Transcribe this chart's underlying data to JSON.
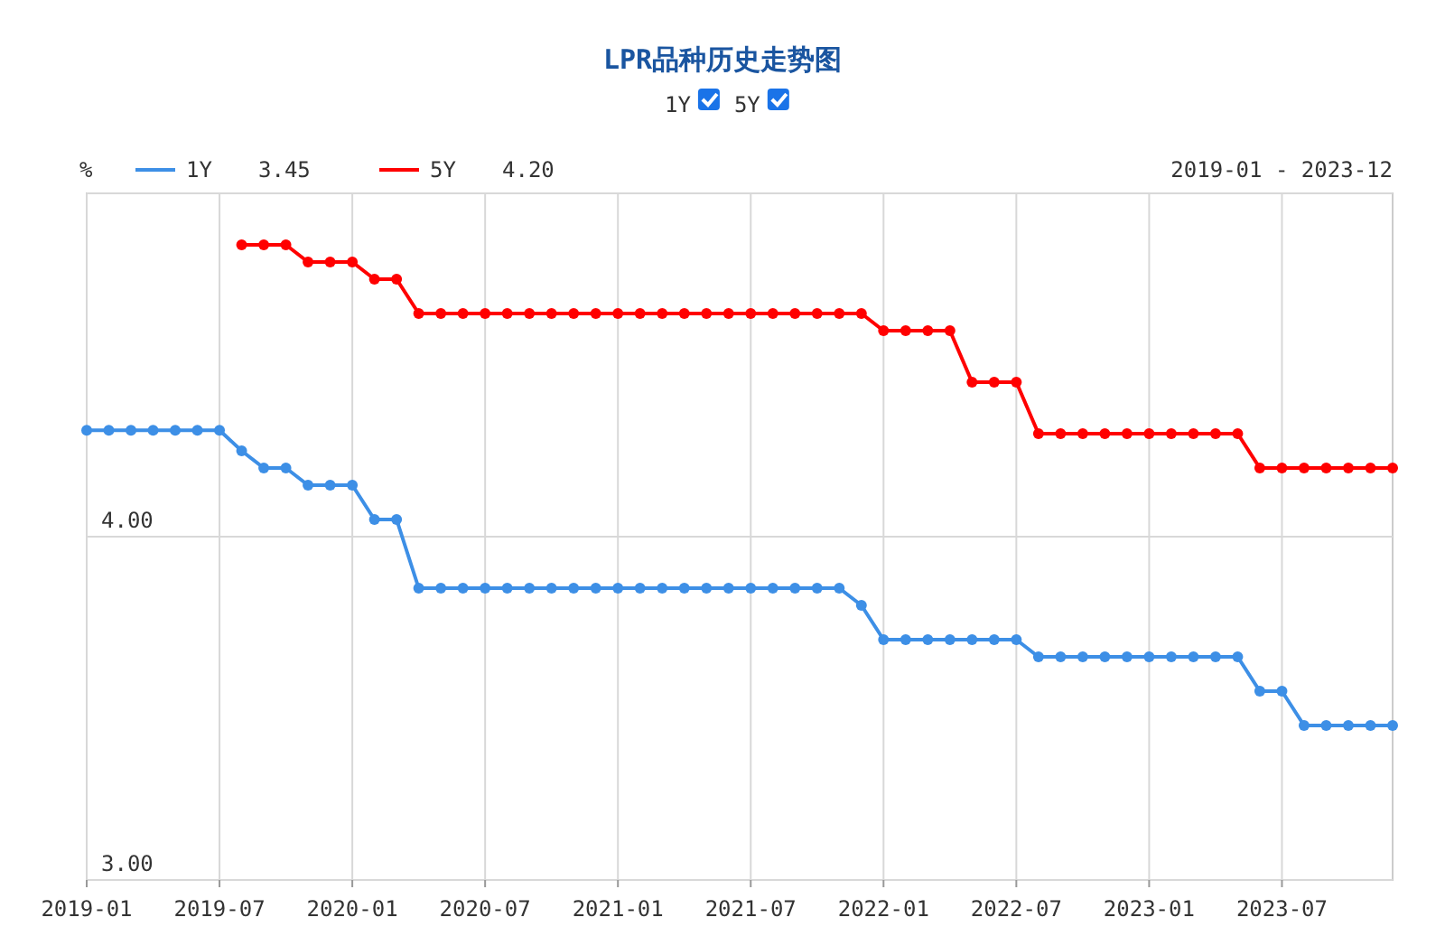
{
  "chart_data": {
    "type": "line",
    "title": "LPR品种历史走势图",
    "ylabel": "%",
    "x": [
      "2019-01",
      "2019-02",
      "2019-03",
      "2019-04",
      "2019-05",
      "2019-06",
      "2019-07",
      "2019-08",
      "2019-09",
      "2019-10",
      "2019-11",
      "2019-12",
      "2020-01",
      "2020-02",
      "2020-03",
      "2020-04",
      "2020-05",
      "2020-06",
      "2020-07",
      "2020-08",
      "2020-09",
      "2020-10",
      "2020-11",
      "2020-12",
      "2021-01",
      "2021-02",
      "2021-03",
      "2021-04",
      "2021-05",
      "2021-06",
      "2021-07",
      "2021-08",
      "2021-09",
      "2021-10",
      "2021-11",
      "2021-12",
      "2022-01",
      "2022-02",
      "2022-03",
      "2022-04",
      "2022-05",
      "2022-06",
      "2022-07",
      "2022-08",
      "2022-09",
      "2022-10",
      "2022-11",
      "2022-12",
      "2023-01",
      "2023-02",
      "2023-03",
      "2023-04",
      "2023-05",
      "2023-06",
      "2023-07",
      "2023-08",
      "2023-09",
      "2023-10",
      "2023-11",
      "2023-12"
    ],
    "series": [
      {
        "name": "1Y",
        "color": "#3d8fe6",
        "values": [
          4.31,
          4.31,
          4.31,
          4.31,
          4.31,
          4.31,
          4.31,
          4.25,
          4.2,
          4.2,
          4.15,
          4.15,
          4.15,
          4.05,
          4.05,
          3.85,
          3.85,
          3.85,
          3.85,
          3.85,
          3.85,
          3.85,
          3.85,
          3.85,
          3.85,
          3.85,
          3.85,
          3.85,
          3.85,
          3.85,
          3.85,
          3.85,
          3.85,
          3.85,
          3.85,
          3.8,
          3.7,
          3.7,
          3.7,
          3.7,
          3.7,
          3.7,
          3.7,
          3.65,
          3.65,
          3.65,
          3.65,
          3.65,
          3.65,
          3.65,
          3.65,
          3.65,
          3.65,
          3.55,
          3.55,
          3.45,
          3.45,
          3.45,
          3.45,
          3.45
        ]
      },
      {
        "name": "5Y",
        "color": "#ff0000",
        "values": [
          null,
          null,
          null,
          null,
          null,
          null,
          null,
          4.85,
          4.85,
          4.85,
          4.8,
          4.8,
          4.8,
          4.75,
          4.75,
          4.65,
          4.65,
          4.65,
          4.65,
          4.65,
          4.65,
          4.65,
          4.65,
          4.65,
          4.65,
          4.65,
          4.65,
          4.65,
          4.65,
          4.65,
          4.65,
          4.65,
          4.65,
          4.65,
          4.65,
          4.65,
          4.6,
          4.6,
          4.6,
          4.6,
          4.45,
          4.45,
          4.45,
          4.3,
          4.3,
          4.3,
          4.3,
          4.3,
          4.3,
          4.3,
          4.3,
          4.3,
          4.3,
          4.2,
          4.2,
          4.2,
          4.2,
          4.2,
          4.2,
          4.2
        ]
      }
    ],
    "xlim": [
      "2019-01",
      "2023-12"
    ],
    "xticks": [
      "2019-01",
      "2019-07",
      "2020-01",
      "2020-07",
      "2021-01",
      "2021-07",
      "2022-01",
      "2022-07",
      "2023-01",
      "2023-07"
    ],
    "ylim": [
      3,
      5
    ],
    "yticks": [
      {
        "value": 3,
        "label": "3.00"
      },
      {
        "value": 4,
        "label": "4.00"
      },
      {
        "value": 5,
        "label": null
      }
    ],
    "annotations": [
      "2019-01 - 2023-12",
      "3.45",
      "4.20"
    ],
    "grid": true,
    "legend": "top left",
    "marker": "circle",
    "line_style": "solid"
  }
}
